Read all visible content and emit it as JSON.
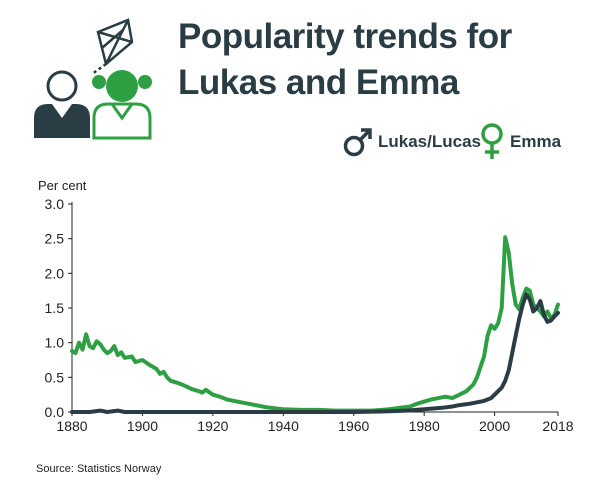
{
  "title_line1": "Popularity trends for",
  "title_line2": "Lukas and Emma",
  "source": "Source: Statistics Norway",
  "colors": {
    "lukas": "#2a3d45",
    "emma": "#2ea043"
  },
  "icons": {
    "illustration": "kite-and-children-icon",
    "male": "male-symbol-icon",
    "female": "female-symbol-icon"
  },
  "chart_data": {
    "type": "line",
    "title": "Popularity trends for Lukas and Emma",
    "ylabel": "Per cent",
    "xlim": [
      1880,
      2018
    ],
    "ylim": [
      0,
      3.0
    ],
    "x_ticks": [
      1880,
      1900,
      1920,
      1940,
      1960,
      1980,
      2000,
      2018
    ],
    "y_ticks": [
      "0.0",
      "0.5",
      "1.0",
      "1.5",
      "2.0",
      "2.5",
      "3.0"
    ],
    "legend_position": "top-right",
    "grid": false,
    "series": [
      {
        "name": "Lukas/Lucas",
        "points": [
          [
            1880,
            0
          ],
          [
            1885,
            0
          ],
          [
            1888,
            0.02
          ],
          [
            1890,
            0
          ],
          [
            1893,
            0.02
          ],
          [
            1895,
            0
          ],
          [
            1930,
            0
          ],
          [
            1960,
            0
          ],
          [
            1970,
            0.01
          ],
          [
            1975,
            0.02
          ],
          [
            1980,
            0.04
          ],
          [
            1985,
            0.06
          ],
          [
            1988,
            0.08
          ],
          [
            1990,
            0.1
          ],
          [
            1993,
            0.12
          ],
          [
            1995,
            0.14
          ],
          [
            1997,
            0.16
          ],
          [
            1999,
            0.2
          ],
          [
            2000,
            0.25
          ],
          [
            2001,
            0.3
          ],
          [
            2002,
            0.35
          ],
          [
            2003,
            0.45
          ],
          [
            2004,
            0.6
          ],
          [
            2005,
            0.85
          ],
          [
            2006,
            1.1
          ],
          [
            2007,
            1.35
          ],
          [
            2008,
            1.55
          ],
          [
            2009,
            1.7
          ],
          [
            2010,
            1.62
          ],
          [
            2011,
            1.45
          ],
          [
            2012,
            1.5
          ],
          [
            2013,
            1.6
          ],
          [
            2014,
            1.4
          ],
          [
            2015,
            1.3
          ],
          [
            2016,
            1.32
          ],
          [
            2017,
            1.38
          ],
          [
            2018,
            1.43
          ]
        ]
      },
      {
        "name": "Emma",
        "points": [
          [
            1880,
            0.88
          ],
          [
            1881,
            0.85
          ],
          [
            1882,
            1.0
          ],
          [
            1883,
            0.9
          ],
          [
            1884,
            1.12
          ],
          [
            1885,
            0.95
          ],
          [
            1886,
            0.92
          ],
          [
            1887,
            1.02
          ],
          [
            1888,
            0.98
          ],
          [
            1889,
            0.9
          ],
          [
            1890,
            0.85
          ],
          [
            1891,
            0.88
          ],
          [
            1892,
            0.95
          ],
          [
            1893,
            0.82
          ],
          [
            1894,
            0.86
          ],
          [
            1895,
            0.78
          ],
          [
            1897,
            0.8
          ],
          [
            1898,
            0.72
          ],
          [
            1900,
            0.75
          ],
          [
            1902,
            0.68
          ],
          [
            1904,
            0.62
          ],
          [
            1905,
            0.55
          ],
          [
            1906,
            0.58
          ],
          [
            1907,
            0.5
          ],
          [
            1908,
            0.45
          ],
          [
            1910,
            0.42
          ],
          [
            1912,
            0.38
          ],
          [
            1914,
            0.33
          ],
          [
            1916,
            0.3
          ],
          [
            1917,
            0.28
          ],
          [
            1918,
            0.32
          ],
          [
            1920,
            0.25
          ],
          [
            1922,
            0.22
          ],
          [
            1924,
            0.18
          ],
          [
            1926,
            0.16
          ],
          [
            1928,
            0.14
          ],
          [
            1930,
            0.12
          ],
          [
            1932,
            0.1
          ],
          [
            1935,
            0.07
          ],
          [
            1938,
            0.05
          ],
          [
            1940,
            0.04
          ],
          [
            1945,
            0.03
          ],
          [
            1950,
            0.03
          ],
          [
            1955,
            0.02
          ],
          [
            1960,
            0.02
          ],
          [
            1965,
            0.02
          ],
          [
            1968,
            0.03
          ],
          [
            1970,
            0.04
          ],
          [
            1973,
            0.06
          ],
          [
            1976,
            0.08
          ],
          [
            1978,
            0.12
          ],
          [
            1980,
            0.15
          ],
          [
            1982,
            0.18
          ],
          [
            1984,
            0.2
          ],
          [
            1986,
            0.22
          ],
          [
            1988,
            0.2
          ],
          [
            1990,
            0.25
          ],
          [
            1992,
            0.3
          ],
          [
            1994,
            0.4
          ],
          [
            1995,
            0.5
          ],
          [
            1996,
            0.65
          ],
          [
            1997,
            0.8
          ],
          [
            1998,
            1.1
          ],
          [
            1999,
            1.25
          ],
          [
            2000,
            1.2
          ],
          [
            2001,
            1.28
          ],
          [
            2002,
            1.5
          ],
          [
            2003,
            2.52
          ],
          [
            2004,
            2.3
          ],
          [
            2005,
            1.85
          ],
          [
            2006,
            1.55
          ],
          [
            2007,
            1.48
          ],
          [
            2008,
            1.65
          ],
          [
            2009,
            1.78
          ],
          [
            2010,
            1.75
          ],
          [
            2011,
            1.55
          ],
          [
            2012,
            1.5
          ],
          [
            2013,
            1.45
          ],
          [
            2014,
            1.38
          ],
          [
            2015,
            1.45
          ],
          [
            2016,
            1.35
          ],
          [
            2017,
            1.4
          ],
          [
            2018,
            1.55
          ]
        ]
      }
    ]
  }
}
